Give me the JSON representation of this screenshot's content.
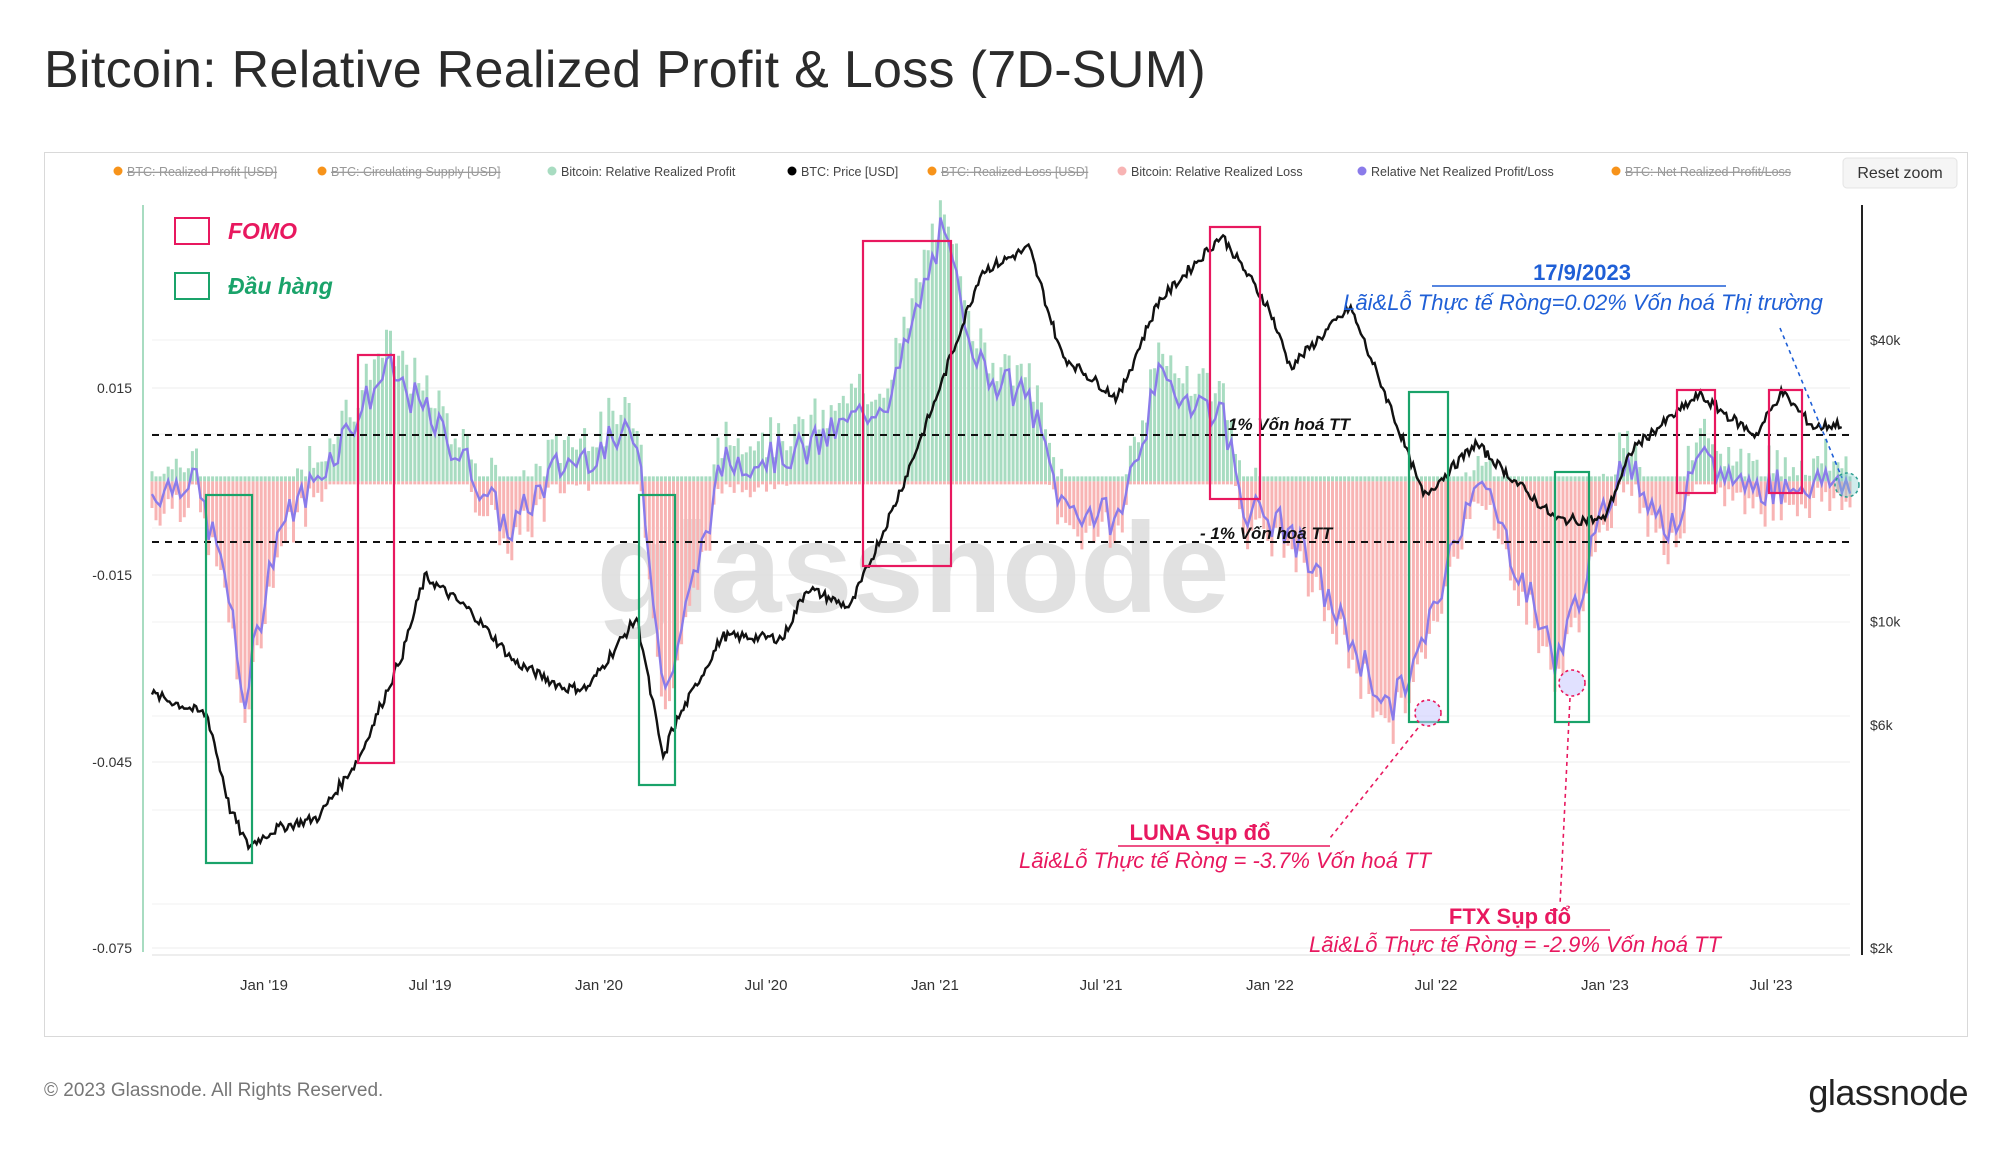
{
  "title": "Bitcoin: Relative Realized Profit & Loss (7D-SUM)",
  "reset_zoom": "Reset zoom",
  "watermark": "glassnode",
  "footer": "© 2023 Glassnode. All Rights Reserved.",
  "brand": "glassnode",
  "legend": [
    {
      "label": "BTC: Realized Profit [USD]",
      "color": "#f7931a",
      "hidden": true
    },
    {
      "label": "BTC: Circulating Supply [USD]",
      "color": "#f7931a",
      "hidden": true
    },
    {
      "label": "Bitcoin: Relative Realized Profit",
      "color": "#a8dcc1",
      "hidden": false
    },
    {
      "label": "BTC: Price [USD]",
      "color": "#000000",
      "hidden": false
    },
    {
      "label": "BTC: Realized Loss [USD]",
      "color": "#f7931a",
      "hidden": true
    },
    {
      "label": "Bitcoin: Relative Realized Loss",
      "color": "#f8b4b4",
      "hidden": false
    },
    {
      "label": "Relative Net Realized Profit/Loss",
      "color": "#8a7bea",
      "hidden": false
    },
    {
      "label": "BTC: Net Realized Profit/Loss",
      "color": "#f7931a",
      "hidden": true
    }
  ],
  "annotations": {
    "fomo": "FOMO",
    "capitulation": "Đầu hàng",
    "date": "17/9/2023",
    "date_note": "Lãi&Lỗ Thực tế Ròng=0.02% Vốn hoá Thị trường",
    "plus1": "1% Vốn hoá TT",
    "minus1": "- 1% Vốn hoá TT",
    "luna_title": "LUNA Sụp đổ",
    "luna_note": "Lãi&Lỗ Thực tế Ròng = -3.7% Vốn hoá TT",
    "ftx_title": "FTX Sụp đổ",
    "ftx_note": "Lãi&Lỗ Thực tế Ròng = -2.9% Vốn hoá TT"
  },
  "colors": {
    "fomo": "#e8185f",
    "capitulation": "#1aa36a",
    "date_blue": "#1f5fd6",
    "profit": "#a8dcc1",
    "loss": "#f8b4b4",
    "net": "#8a7bea",
    "price": "#111111"
  },
  "chart_data": {
    "type": "line",
    "x_tick_labels": [
      "Jan '19",
      "Jul '19",
      "Jan '20",
      "Jul '20",
      "Jan '21",
      "Jul '21",
      "Jan '22",
      "Jul '22",
      "Jan '23",
      "Jul '23"
    ],
    "y_left_ticks": [
      "0.015",
      "-0.015",
      "-0.045",
      "-0.075"
    ],
    "y_left_range": [
      -0.075,
      0.015
    ],
    "y_right_ticks": [
      "$40k",
      "$10k",
      "$6k",
      "$2k"
    ],
    "price_series": {
      "name": "BTC: Price [USD]",
      "points": [
        [
          "2018-09-01",
          7000
        ],
        [
          "2018-11-01",
          6300
        ],
        [
          "2018-11-25",
          4000
        ],
        [
          "2018-12-15",
          3300
        ],
        [
          "2019-01-15",
          3600
        ],
        [
          "2019-03-01",
          3800
        ],
        [
          "2019-04-15",
          5100
        ],
        [
          "2019-06-01",
          8500
        ],
        [
          "2019-06-26",
          12500
        ],
        [
          "2019-08-15",
          10500
        ],
        [
          "2019-10-01",
          8200
        ],
        [
          "2019-11-25",
          7200
        ],
        [
          "2019-12-20",
          7200
        ],
        [
          "2020-02-12",
          10200
        ],
        [
          "2020-03-12",
          5000
        ],
        [
          "2020-03-20",
          5800
        ],
        [
          "2020-05-15",
          9300
        ],
        [
          "2020-07-20",
          9200
        ],
        [
          "2020-08-15",
          11800
        ],
        [
          "2020-10-01",
          10700
        ],
        [
          "2020-11-20",
          18000
        ],
        [
          "2020-12-31",
          29000
        ],
        [
          "2021-02-21",
          56000
        ],
        [
          "2021-04-14",
          63000
        ],
        [
          "2021-05-20",
          37000
        ],
        [
          "2021-07-20",
          30000
        ],
        [
          "2021-09-01",
          48000
        ],
        [
          "2021-11-10",
          67000
        ],
        [
          "2021-12-31",
          47000
        ],
        [
          "2022-01-24",
          35000
        ],
        [
          "2022-03-30",
          47000
        ],
        [
          "2022-05-12",
          29000
        ],
        [
          "2022-06-18",
          18500
        ],
        [
          "2022-08-14",
          24000
        ],
        [
          "2022-10-01",
          19500
        ],
        [
          "2022-11-10",
          16500
        ],
        [
          "2022-12-31",
          16500
        ],
        [
          "2023-02-01",
          23500
        ],
        [
          "2023-04-14",
          30500
        ],
        [
          "2023-06-15",
          25000
        ],
        [
          "2023-07-13",
          31000
        ],
        [
          "2023-08-17",
          26000
        ],
        [
          "2023-09-17",
          26500
        ]
      ]
    },
    "net_series": {
      "name": "Relative Net Realized Profit/Loss",
      "points": [
        [
          "2018-09-01",
          -0.002
        ],
        [
          "2018-10-15",
          0.001
        ],
        [
          "2018-11-20",
          -0.015
        ],
        [
          "2018-12-10",
          -0.036
        ],
        [
          "2019-01-15",
          -0.008
        ],
        [
          "2019-03-01",
          0.001
        ],
        [
          "2019-05-15",
          0.018
        ],
        [
          "2019-06-26",
          0.011
        ],
        [
          "2019-08-15",
          0.002
        ],
        [
          "2019-09-25",
          -0.008
        ],
        [
          "2019-11-15",
          0.002
        ],
        [
          "2020-02-12",
          0.008
        ],
        [
          "2020-03-12",
          -0.035
        ],
        [
          "2020-05-15",
          0.003
        ],
        [
          "2020-08-15",
          0.005
        ],
        [
          "2020-11-15",
          0.014
        ],
        [
          "2021-01-08",
          0.04
        ],
        [
          "2021-02-21",
          0.018
        ],
        [
          "2021-04-14",
          0.013
        ],
        [
          "2021-05-20",
          -0.004
        ],
        [
          "2021-07-20",
          -0.006
        ],
        [
          "2021-09-01",
          0.016
        ],
        [
          "2021-11-10",
          0.011
        ],
        [
          "2021-12-04",
          -0.004
        ],
        [
          "2022-01-24",
          -0.008
        ],
        [
          "2022-05-12",
          -0.037
        ],
        [
          "2022-06-18",
          -0.026
        ],
        [
          "2022-08-14",
          0.002
        ],
        [
          "2022-11-10",
          -0.029
        ],
        [
          "2023-01-20",
          0.004
        ],
        [
          "2023-03-15",
          -0.008
        ],
        [
          "2023-04-14",
          0.003
        ],
        [
          "2023-06-15",
          -0.001
        ],
        [
          "2023-09-17",
          0.0002
        ]
      ]
    }
  }
}
